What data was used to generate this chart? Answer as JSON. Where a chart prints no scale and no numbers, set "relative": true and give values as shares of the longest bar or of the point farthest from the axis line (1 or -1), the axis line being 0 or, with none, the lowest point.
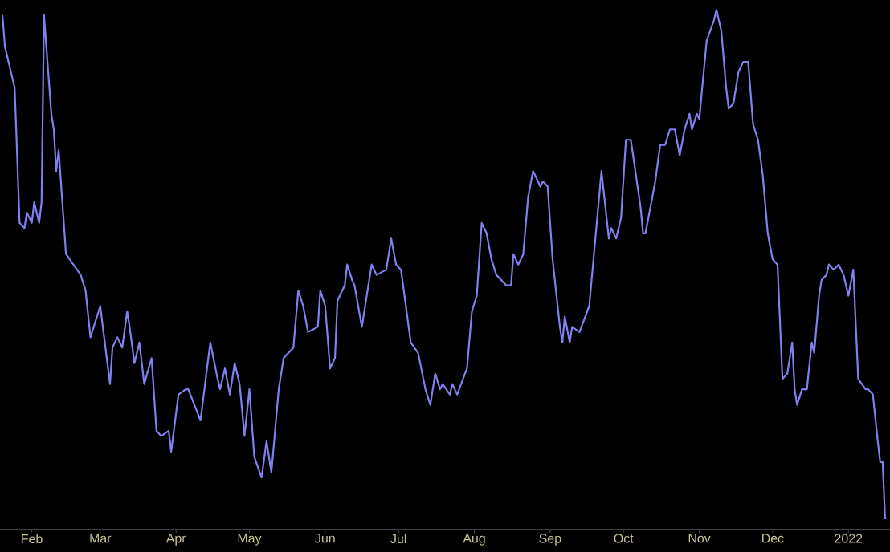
{
  "chart_data": {
    "type": "line",
    "relative": true,
    "x": [
      "2021-01-20",
      "2021-01-21",
      "2021-01-25",
      "2021-01-27",
      "2021-01-29",
      "2021-01-30",
      "2021-02-01",
      "2021-02-02",
      "2021-02-04",
      "2021-02-05",
      "2021-02-06",
      "2021-02-09",
      "2021-02-10",
      "2021-02-11",
      "2021-02-12",
      "2021-02-15",
      "2021-02-18",
      "2021-02-21",
      "2021-02-23",
      "2021-02-25",
      "2021-03-01",
      "2021-03-05",
      "2021-03-06",
      "2021-03-08",
      "2021-03-10",
      "2021-03-12",
      "2021-03-13",
      "2021-03-15",
      "2021-03-17",
      "2021-03-19",
      "2021-03-22",
      "2021-03-24",
      "2021-03-26",
      "2021-03-29",
      "2021-03-30",
      "2021-04-02",
      "2021-04-05",
      "2021-04-06",
      "2021-04-11",
      "2021-04-15",
      "2021-04-18",
      "2021-04-19",
      "2021-04-21",
      "2021-04-23",
      "2021-04-25",
      "2021-04-27",
      "2021-04-29",
      "2021-05-01",
      "2021-05-03",
      "2021-05-06",
      "2021-05-08",
      "2021-05-10",
      "2021-05-13",
      "2021-05-15",
      "2021-05-19",
      "2021-05-21",
      "2021-05-23",
      "2021-05-25",
      "2021-05-29",
      "2021-05-30",
      "2021-06-01",
      "2021-06-03",
      "2021-06-05",
      "2021-06-06",
      "2021-06-09",
      "2021-06-10",
      "2021-06-12",
      "2021-06-13",
      "2021-06-16",
      "2021-06-20",
      "2021-06-22",
      "2021-06-26",
      "2021-06-28",
      "2021-06-30",
      "2021-07-02",
      "2021-07-04",
      "2021-07-06",
      "2021-07-09",
      "2021-07-12",
      "2021-07-14",
      "2021-07-16",
      "2021-07-18",
      "2021-07-19",
      "2021-07-22",
      "2021-07-23",
      "2021-07-25",
      "2021-07-29",
      "2021-07-31",
      "2021-08-02",
      "2021-08-04",
      "2021-08-06",
      "2021-08-08",
      "2021-08-10",
      "2021-08-12",
      "2021-08-14",
      "2021-08-16",
      "2021-08-17",
      "2021-08-19",
      "2021-08-21",
      "2021-08-23",
      "2021-08-25",
      "2021-08-28",
      "2021-08-29",
      "2021-08-31",
      "2021-09-02",
      "2021-09-05",
      "2021-09-06",
      "2021-09-07",
      "2021-09-09",
      "2021-09-10",
      "2021-09-13",
      "2021-09-17",
      "2021-09-22",
      "2021-09-25",
      "2021-09-26",
      "2021-09-28",
      "2021-09-30",
      "2021-10-02",
      "2021-10-04",
      "2021-10-08",
      "2021-10-09",
      "2021-10-10",
      "2021-10-14",
      "2021-10-16",
      "2021-10-18",
      "2021-10-20",
      "2021-10-22",
      "2021-10-24",
      "2021-10-26",
      "2021-10-28",
      "2021-10-29",
      "2021-10-31",
      "2021-11-01",
      "2021-11-02",
      "2021-11-04",
      "2021-11-07",
      "2021-11-08",
      "2021-11-10",
      "2021-11-12",
      "2021-11-13",
      "2021-11-15",
      "2021-11-17",
      "2021-11-19",
      "2021-11-21",
      "2021-11-23",
      "2021-11-25",
      "2021-11-27",
      "2021-11-29",
      "2021-12-01",
      "2021-12-03",
      "2021-12-04",
      "2021-12-05",
      "2021-12-07",
      "2021-12-09",
      "2021-12-10",
      "2021-12-11",
      "2021-12-13",
      "2021-12-15",
      "2021-12-17",
      "2021-12-18",
      "2021-12-20",
      "2021-12-21",
      "2021-12-23",
      "2021-12-24",
      "2021-12-26",
      "2021-12-28",
      "2021-12-30",
      "2022-01-01",
      "2022-01-03",
      "2022-01-05",
      "2022-01-08",
      "2022-01-09",
      "2022-01-11",
      "2022-01-13",
      "2022-01-14",
      "2022-01-15",
      "2022-01-16"
    ],
    "series": [
      {
        "color": "#8080f0",
        "values": [
          0.99,
          0.93,
          0.85,
          0.59,
          0.58,
          0.61,
          0.59,
          0.63,
          0.59,
          0.63,
          0.99,
          0.8,
          0.77,
          0.69,
          0.73,
          0.53,
          0.51,
          0.49,
          0.46,
          0.37,
          0.43,
          0.28,
          0.35,
          0.37,
          0.35,
          0.42,
          0.39,
          0.32,
          0.36,
          0.28,
          0.33,
          0.19,
          0.18,
          0.19,
          0.15,
          0.26,
          0.27,
          0.27,
          0.21,
          0.36,
          0.29,
          0.27,
          0.31,
          0.26,
          0.32,
          0.28,
          0.18,
          0.27,
          0.14,
          0.1,
          0.17,
          0.11,
          0.27,
          0.33,
          0.35,
          0.46,
          0.43,
          0.38,
          0.39,
          0.46,
          0.43,
          0.31,
          0.33,
          0.44,
          0.47,
          0.51,
          0.48,
          0.47,
          0.39,
          0.51,
          0.49,
          0.5,
          0.56,
          0.51,
          0.5,
          0.43,
          0.36,
          0.34,
          0.27,
          0.24,
          0.3,
          0.27,
          0.28,
          0.26,
          0.28,
          0.26,
          0.31,
          0.42,
          0.45,
          0.59,
          0.57,
          0.52,
          0.49,
          0.48,
          0.47,
          0.47,
          0.53,
          0.51,
          0.53,
          0.64,
          0.69,
          0.66,
          0.67,
          0.66,
          0.52,
          0.39,
          0.36,
          0.41,
          0.36,
          0.39,
          0.38,
          0.43,
          0.69,
          0.56,
          0.58,
          0.56,
          0.6,
          0.75,
          0.75,
          0.62,
          0.57,
          0.57,
          0.67,
          0.74,
          0.74,
          0.77,
          0.77,
          0.72,
          0.77,
          0.8,
          0.77,
          0.8,
          0.79,
          0.84,
          0.94,
          0.98,
          1,
          0.96,
          0.85,
          0.81,
          0.82,
          0.88,
          0.9,
          0.9,
          0.78,
          0.75,
          0.68,
          0.57,
          0.52,
          0.51,
          0.4,
          0.29,
          0.3,
          0.36,
          0.27,
          0.24,
          0.27,
          0.27,
          0.36,
          0.34,
          0.45,
          0.48,
          0.49,
          0.51,
          0.5,
          0.51,
          0.49,
          0.45,
          0.5,
          0.29,
          0.27,
          0.27,
          0.26,
          0.17,
          0.13,
          0.13,
          0.02
        ]
      }
    ],
    "xlim": [
      "2021-01-19",
      "2022-01-18"
    ],
    "xticks": [
      {
        "value": "2021-02-01",
        "label": "Feb"
      },
      {
        "value": "2021-03-01",
        "label": "Mar"
      },
      {
        "value": "2021-04-01",
        "label": "Apr"
      },
      {
        "value": "2021-05-01",
        "label": "May"
      },
      {
        "value": "2021-06-01",
        "label": "Jun"
      },
      {
        "value": "2021-07-01",
        "label": "Jul"
      },
      {
        "value": "2021-08-01",
        "label": "Aug"
      },
      {
        "value": "2021-09-01",
        "label": "Sep"
      },
      {
        "value": "2021-10-01",
        "label": "Oct"
      },
      {
        "value": "2021-11-01",
        "label": "Nov"
      },
      {
        "value": "2021-12-01",
        "label": "Dec"
      },
      {
        "value": "2022-01-01",
        "label": "2022"
      }
    ]
  }
}
